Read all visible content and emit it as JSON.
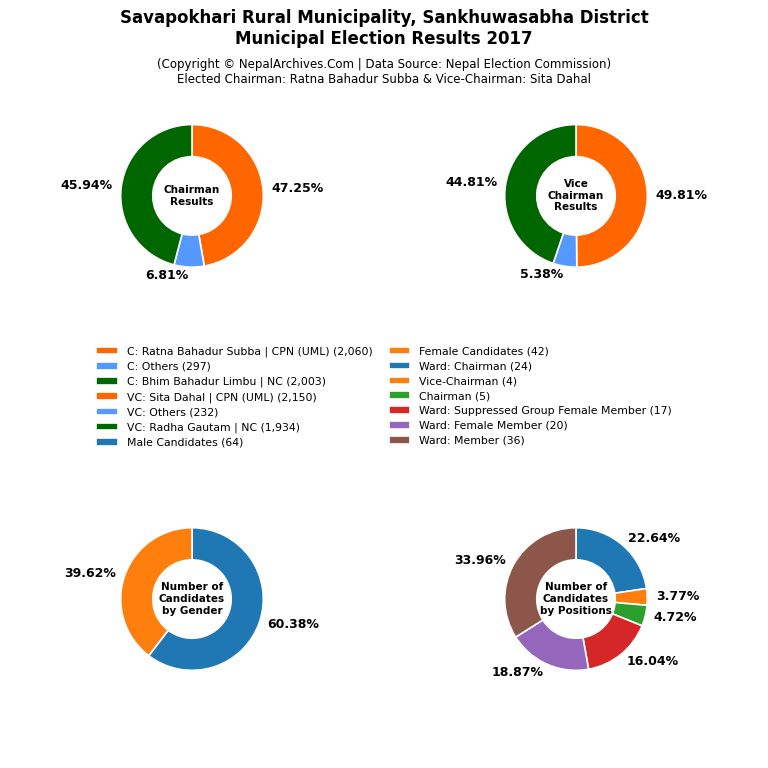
{
  "title": "Savapokhari Rural Municipality, Sankhuwasabha District\nMunicipal Election Results 2017",
  "subtitle": "(Copyright © NepalArchives.Com | Data Source: Nepal Election Commission)\nElected Chairman: Ratna Bahadur Subba & Vice-Chairman: Sita Dahal",
  "legend": "center",
  "chart_data": [
    {
      "type": "pie",
      "title": "Chairman\nResults",
      "categories": [
        "C: Ratna Bahadur Subba | CPN (UML) (2,060)",
        "C: Others (297)",
        "C: Bhim Bahadur Limbu | NC (2,003)"
      ],
      "values": [
        47.25,
        6.81,
        45.94
      ],
      "value_labels": [
        "47.25%",
        "6.81%",
        "45.94%"
      ],
      "colors": [
        "#ff6600",
        "#5599ff",
        "#006600"
      ],
      "data_labels": true
    },
    {
      "type": "pie",
      "title": "Vice\nChairman\nResults",
      "categories": [
        "VC: Sita Dahal | CPN (UML) (2,150)",
        "VC: Others (232)",
        "VC: Radha Gautam | NC (1,934)"
      ],
      "values": [
        49.81,
        5.38,
        44.81
      ],
      "value_labels": [
        "49.81%",
        "5.38%",
        "44.81%"
      ],
      "colors": [
        "#ff6600",
        "#5599ff",
        "#006600"
      ],
      "data_labels": true
    },
    {
      "type": "pie",
      "title": "Number of\nCandidates\nby Gender",
      "categories": [
        "Male Candidates (64)",
        "Female Candidates (42)"
      ],
      "values": [
        60.38,
        39.62
      ],
      "value_labels": [
        "60.38%",
        "39.62%"
      ],
      "data_labels": true
    },
    {
      "type": "pie",
      "title": "Number of\nCandidates\nby Positions",
      "categories": [
        "Ward: Chairman (24)",
        "Vice-Chairman (4)",
        "Chairman (5)",
        "Ward: Suppressed Group Female Member (17)",
        "Ward: Female Member (20)",
        "Ward: Member (36)"
      ],
      "values": [
        22.64,
        3.77,
        4.72,
        16.04,
        18.87,
        33.96
      ],
      "value_labels": [
        "22.64%",
        "3.77%",
        "4.72%",
        "16.04%",
        "18.87%",
        "33.96%"
      ],
      "data_labels": true
    }
  ]
}
